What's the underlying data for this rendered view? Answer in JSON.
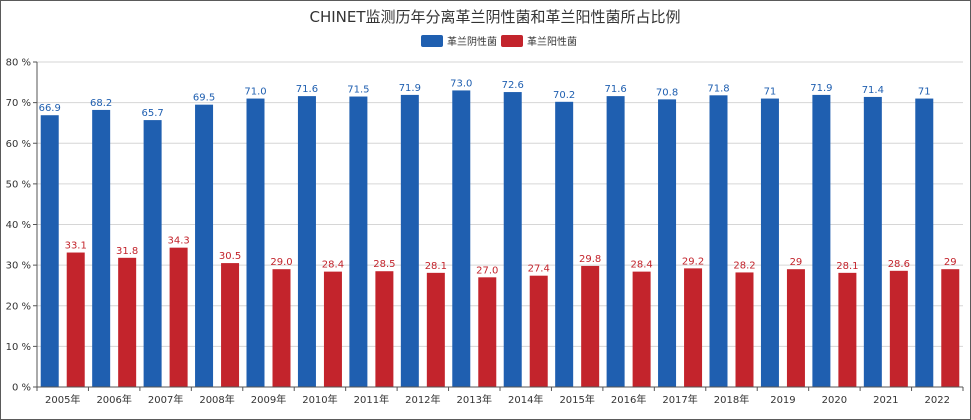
{
  "chart_data": {
    "type": "bar",
    "title": "CHINET监测历年分离革兰阴性菌和革兰阳性菌所占比例",
    "categories": [
      "2005年",
      "2006年",
      "2007年",
      "2008年",
      "2009年",
      "2010年",
      "2011年",
      "2012年",
      "2013年",
      "2014年",
      "2015年",
      "2016年",
      "2017年",
      "2018年",
      "2019",
      "2020",
      "2021",
      "2022"
    ],
    "series": [
      {
        "name": "革兰阴性菌",
        "color": "#1f5fb0",
        "values": [
          66.9,
          68.2,
          65.7,
          69.5,
          71.0,
          71.6,
          71.5,
          71.9,
          73.0,
          72.6,
          70.2,
          71.6,
          70.8,
          71.8,
          71,
          71.9,
          71.4,
          71
        ],
        "labels": [
          "66.9",
          "68.2",
          "65.7",
          "69.5",
          "71.0",
          "71.6",
          "71.5",
          "71.9",
          "73.0",
          "72.6",
          "70.2",
          "71.6",
          "70.8",
          "71.8",
          "71",
          "71.9",
          "71.4",
          "71"
        ]
      },
      {
        "name": "革兰阳性菌",
        "color": "#c3242c",
        "values": [
          33.1,
          31.8,
          34.3,
          30.5,
          29.0,
          28.4,
          28.5,
          28.1,
          27.0,
          27.4,
          29.8,
          28.4,
          29.2,
          28.2,
          29,
          28.1,
          28.6,
          29
        ],
        "labels": [
          "33.1",
          "31.8",
          "34.3",
          "30.5",
          "29.0",
          "28.4",
          "28.5",
          "28.1",
          "27.0",
          "27.4",
          "29.8",
          "28.4",
          "29.2",
          "28.2",
          "29",
          "28.1",
          "28.6",
          "29"
        ]
      }
    ],
    "ylim": [
      0,
      80
    ],
    "yticks": [
      "0 %",
      "10 %",
      "20 %",
      "30 %",
      "40 %",
      "50 %",
      "60 %",
      "70 %",
      "80 %"
    ],
    "grid": true,
    "legend": "top-center"
  }
}
